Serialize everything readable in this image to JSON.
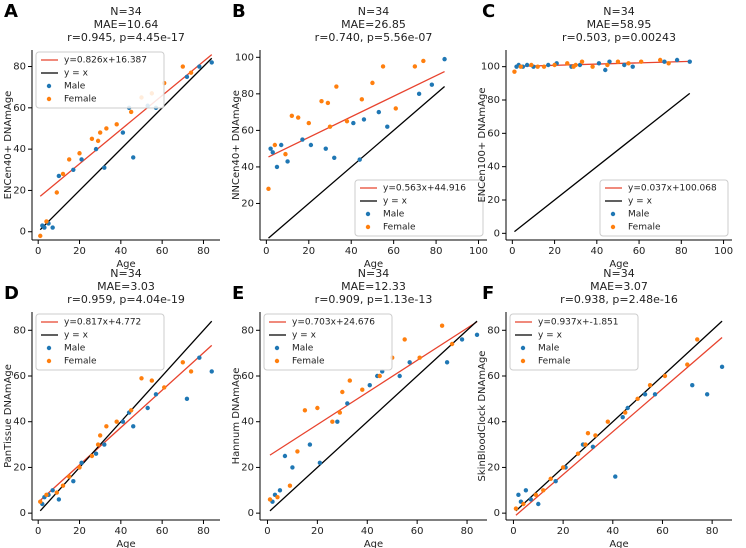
{
  "chart_data": [
    {
      "type": "scatter",
      "panel": "A",
      "title": [
        "N=34",
        "MAE=10.64",
        "r=0.945, p=4.45e-17"
      ],
      "xlabel": "Age",
      "ylabel": "ENCen40+ DNAmAge",
      "xlim": [
        -3,
        88
      ],
      "ylim": [
        -4,
        88
      ],
      "xticks": [
        0,
        20,
        40,
        60,
        80
      ],
      "yticks": [
        0,
        20,
        40,
        60,
        80
      ],
      "legend": "upper left",
      "fit": {
        "label": "y=0.826x+16.387",
        "slope": 0.826,
        "intercept": 16.387,
        "color": "#e8432e"
      },
      "identity": {
        "label": "y = x",
        "color": "#000000"
      },
      "series": [
        {
          "name": "Male",
          "color": "#1f77b4",
          "x": [
            2,
            3,
            5,
            7,
            10,
            17,
            21,
            28,
            32,
            41,
            44,
            46,
            53,
            57,
            72,
            78,
            84
          ],
          "values": [
            3,
            2,
            4,
            2,
            27,
            30,
            35,
            40,
            31,
            48,
            60,
            36,
            61,
            60,
            75,
            80,
            82
          ]
        },
        {
          "name": "Female",
          "color": "#ff7f0e",
          "x": [
            1,
            4,
            9,
            12,
            15,
            20,
            26,
            29,
            30,
            33,
            38,
            45,
            50,
            55,
            61,
            70,
            74
          ],
          "values": [
            -2,
            5,
            19,
            28,
            35,
            38,
            45,
            44,
            48,
            50,
            52,
            58,
            65,
            67,
            72,
            80,
            77
          ]
        }
      ]
    },
    {
      "type": "scatter",
      "panel": "B",
      "title": [
        "N=34",
        "MAE=26.85",
        "r=0.740, p=5.56e-07"
      ],
      "xlabel": "Age",
      "ylabel": "NNCen40+ DNAmAge",
      "xlim": [
        -3,
        104
      ],
      "ylim": [
        0,
        104
      ],
      "xticks": [
        0,
        20,
        40,
        60,
        80,
        100
      ],
      "yticks": [
        20,
        40,
        60,
        80,
        100
      ],
      "legend": "lower right",
      "fit": {
        "label": "y=0.563x+44.916",
        "slope": 0.563,
        "intercept": 44.916,
        "color": "#e8432e"
      },
      "identity": {
        "label": "y = x",
        "color": "#000000"
      },
      "series": [
        {
          "name": "Male",
          "color": "#1f77b4",
          "x": [
            2,
            3,
            5,
            7,
            10,
            17,
            21,
            28,
            32,
            41,
            44,
            46,
            53,
            57,
            72,
            78,
            84
          ],
          "values": [
            50,
            48,
            40,
            52,
            43,
            55,
            52,
            50,
            45,
            64,
            44,
            66,
            70,
            62,
            80,
            85,
            99
          ]
        },
        {
          "name": "Female",
          "color": "#ff7f0e",
          "x": [
            1,
            4,
            9,
            12,
            15,
            20,
            26,
            29,
            30,
            33,
            38,
            45,
            50,
            55,
            61,
            70,
            74
          ],
          "values": [
            28,
            52,
            47,
            68,
            67,
            64,
            76,
            75,
            62,
            84,
            65,
            77,
            86,
            95,
            72,
            95,
            98
          ]
        }
      ]
    },
    {
      "type": "scatter",
      "panel": "C",
      "title": [
        "N=34",
        "MAE=58.95",
        "r=0.503, p=0.00243"
      ],
      "xlabel": "Age",
      "ylabel": "ENCen100+ DNAmAge",
      "xlim": [
        -3,
        104
      ],
      "ylim": [
        -4,
        110
      ],
      "xticks": [
        0,
        20,
        40,
        60,
        80,
        100
      ],
      "yticks": [
        0,
        20,
        40,
        60,
        80,
        100
      ],
      "legend": "lower right",
      "fit": {
        "label": "y=0.037x+100.068",
        "slope": 0.037,
        "intercept": 100.068,
        "color": "#e8432e"
      },
      "identity": {
        "label": "y = x",
        "color": "#000000"
      },
      "series": [
        {
          "name": "Male",
          "color": "#1f77b4",
          "x": [
            2,
            3,
            5,
            7,
            10,
            17,
            21,
            28,
            32,
            41,
            44,
            46,
            53,
            57,
            72,
            78,
            84
          ],
          "values": [
            100,
            101,
            100,
            101,
            100,
            101,
            102,
            100,
            101,
            102,
            98,
            103,
            101,
            100,
            103,
            104,
            103
          ]
        },
        {
          "name": "Female",
          "color": "#ff7f0e",
          "x": [
            1,
            4,
            9,
            12,
            15,
            20,
            26,
            29,
            30,
            33,
            38,
            45,
            50,
            55,
            61,
            70,
            74
          ],
          "values": [
            97,
            100,
            101,
            100,
            100,
            101,
            102,
            100,
            101,
            103,
            100,
            101,
            103,
            102,
            103,
            104,
            102
          ]
        }
      ]
    },
    {
      "type": "scatter",
      "panel": "D",
      "title": [
        "N=34",
        "MAE=3.03",
        "r=0.959, p=4.04e-19"
      ],
      "xlabel": "Age",
      "ylabel": "PanTissue DNAmAge",
      "xlim": [
        -3,
        88
      ],
      "ylim": [
        -3,
        88
      ],
      "xticks": [
        0,
        20,
        40,
        60,
        80
      ],
      "yticks": [
        0,
        20,
        40,
        60,
        80
      ],
      "legend": "upper left",
      "fit": {
        "label": "y=0.817x+4.772",
        "slope": 0.817,
        "intercept": 4.772,
        "color": "#e8432e"
      },
      "identity": {
        "label": "y = x",
        "color": "#000000"
      },
      "series": [
        {
          "name": "Male",
          "color": "#1f77b4",
          "x": [
            2,
            3,
            5,
            7,
            10,
            17,
            21,
            28,
            32,
            41,
            44,
            46,
            53,
            57,
            72,
            78,
            84
          ],
          "values": [
            4,
            7,
            8,
            10,
            6,
            14,
            22,
            26,
            30,
            40,
            44,
            38,
            46,
            52,
            50,
            68,
            62
          ]
        },
        {
          "name": "Female",
          "color": "#ff7f0e",
          "x": [
            1,
            4,
            9,
            12,
            15,
            20,
            26,
            29,
            30,
            33,
            38,
            45,
            50,
            55,
            61,
            70,
            74
          ],
          "values": [
            5,
            8,
            9,
            12,
            16,
            20,
            25,
            30,
            34,
            38,
            40,
            45,
            59,
            58,
            55,
            66,
            62
          ]
        }
      ]
    },
    {
      "type": "scatter",
      "panel": "E",
      "title": [
        "N=34",
        "MAE=12.33",
        "r=0.909, p=1.13e-13"
      ],
      "xlabel": "Age",
      "ylabel": "Hannum DNAmAge",
      "xlim": [
        -3,
        88
      ],
      "ylim": [
        -3,
        88
      ],
      "xticks": [
        0,
        20,
        40,
        60,
        80
      ],
      "yticks": [
        0,
        20,
        40,
        60,
        80
      ],
      "legend": "upper left",
      "fit": {
        "label": "y=0.703x+24.676",
        "slope": 0.703,
        "intercept": 24.676,
        "color": "#e8432e"
      },
      "identity": {
        "label": "y = x",
        "color": "#000000"
      },
      "series": [
        {
          "name": "Male",
          "color": "#1f77b4",
          "x": [
            2,
            3,
            5,
            7,
            10,
            17,
            21,
            28,
            32,
            41,
            44,
            46,
            53,
            57,
            72,
            78,
            84
          ],
          "values": [
            5,
            8,
            10,
            25,
            20,
            30,
            22,
            40,
            48,
            56,
            60,
            62,
            60,
            66,
            66,
            76,
            78
          ]
        },
        {
          "name": "Female",
          "color": "#ff7f0e",
          "x": [
            1,
            4,
            9,
            12,
            15,
            20,
            26,
            29,
            30,
            33,
            38,
            45,
            50,
            55,
            61,
            70,
            74
          ],
          "values": [
            6,
            7,
            12,
            27,
            45,
            46,
            40,
            44,
            53,
            58,
            54,
            60,
            68,
            76,
            68,
            82,
            74
          ]
        }
      ]
    },
    {
      "type": "scatter",
      "panel": "F",
      "title": [
        "N=34",
        "MAE=3.07",
        "r=0.938, p=2.48e-16"
      ],
      "xlabel": "Age",
      "ylabel": "SkinBloodClock DNAmAge",
      "xlim": [
        -3,
        88
      ],
      "ylim": [
        -3,
        88
      ],
      "xticks": [
        0,
        20,
        40,
        60,
        80
      ],
      "yticks": [
        0,
        20,
        40,
        60,
        80
      ],
      "legend": "upper left",
      "fit": {
        "label": "y=0.937x+-1.851",
        "slope": 0.937,
        "intercept": -1.851,
        "color": "#e8432e"
      },
      "identity": {
        "label": "y = x",
        "color": "#000000"
      },
      "series": [
        {
          "name": "Male",
          "color": "#1f77b4",
          "x": [
            2,
            3,
            5,
            7,
            10,
            17,
            21,
            28,
            32,
            41,
            44,
            46,
            53,
            57,
            72,
            78,
            84
          ],
          "values": [
            8,
            5,
            10,
            6,
            4,
            14,
            20,
            30,
            29,
            16,
            42,
            46,
            52,
            52,
            56,
            52,
            64
          ]
        },
        {
          "name": "Female",
          "color": "#ff7f0e",
          "x": [
            1,
            4,
            9,
            12,
            15,
            20,
            26,
            29,
            30,
            33,
            38,
            45,
            50,
            55,
            61,
            70,
            74
          ],
          "values": [
            2,
            4,
            8,
            10,
            15,
            20,
            26,
            30,
            35,
            34,
            40,
            44,
            50,
            56,
            60,
            65,
            76
          ]
        }
      ]
    }
  ]
}
